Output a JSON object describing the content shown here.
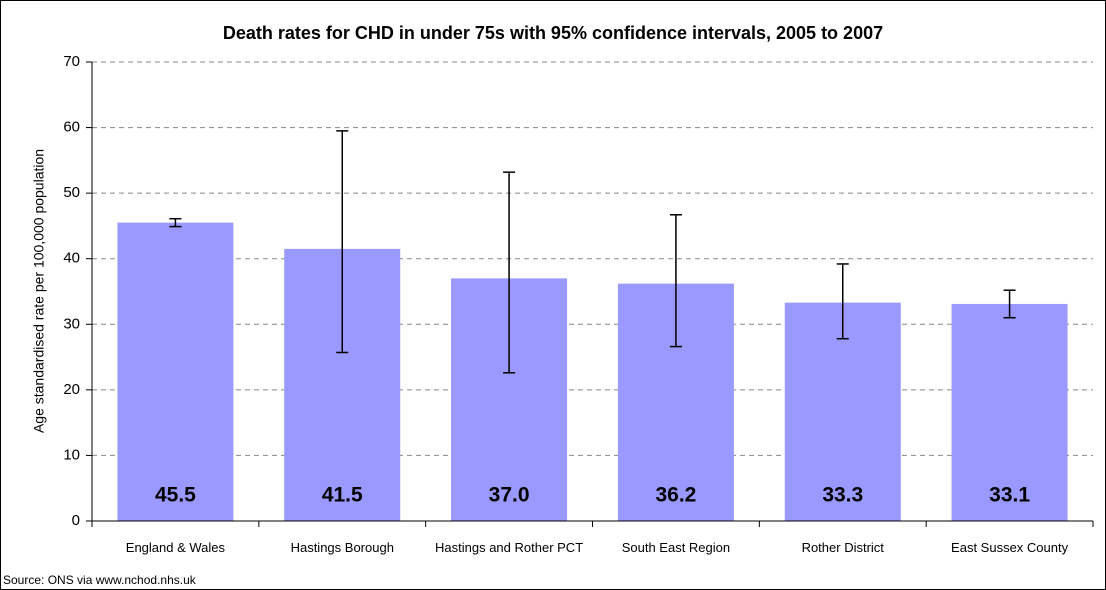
{
  "chart_data": {
    "type": "bar",
    "title": "Death rates for CHD in under 75s with 95% confidence intervals, 2005 to 2007",
    "y_label": "Age standardised rate per 100,000 population",
    "source": "Source: ONS via www.nchod.nhs.uk",
    "categories": [
      "England & Wales",
      "Hastings Borough",
      "Hastings and Rother PCT",
      "South East Region",
      "Rother District",
      "East Sussex County"
    ],
    "values": [
      45.5,
      41.5,
      37.0,
      36.2,
      33.3,
      33.1
    ],
    "value_labels": [
      "45.5",
      "41.5",
      "37.0",
      "36.2",
      "33.3",
      "33.1"
    ],
    "ci_lower": [
      44.9,
      25.7,
      22.6,
      26.6,
      27.8,
      31.0
    ],
    "ci_upper": [
      46.1,
      59.5,
      53.2,
      46.7,
      39.2,
      35.2
    ],
    "color": "#9999ff",
    "ylim": [
      0,
      70
    ],
    "yticks": [
      0,
      10,
      20,
      30,
      40,
      50,
      60,
      70
    ],
    "grid": true
  }
}
